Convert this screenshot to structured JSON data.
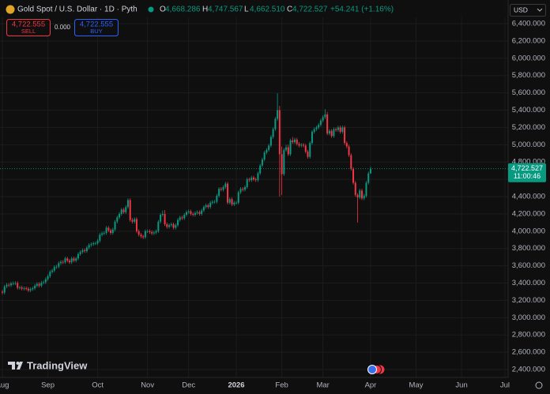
{
  "ui": {
    "symbol_title": "Gold Spot / U.S. Dollar · 1D · Pyth",
    "ohlc": [
      {
        "key": "O",
        "value": "4,668.286"
      },
      {
        "key": "H",
        "value": "4,747.567"
      },
      {
        "key": "L",
        "value": "4,662.510"
      },
      {
        "key": "C",
        "value": "4,722.527"
      }
    ],
    "change": "+54.241 (+1.16%)",
    "sell_price": "4,722.555",
    "sell_label": "SELL",
    "spread": "0.000",
    "buy_price": "4,722.555",
    "buy_label": "BUY",
    "currency": "USD",
    "last_price_label": "4,722.527",
    "countdown": "11:00:46",
    "brand": "TradingView"
  },
  "chart_data": {
    "type": "candlestick",
    "up_color": "#089981",
    "down_color": "#f23645",
    "grid": true,
    "ylim": [
      2309,
      6674
    ],
    "yticks": [
      {
        "value": 2400,
        "label": "2,400.000"
      },
      {
        "value": 2600,
        "label": "2,600.000"
      },
      {
        "value": 2800,
        "label": "2,800.000"
      },
      {
        "value": 3000,
        "label": "3,000.000"
      },
      {
        "value": 3200,
        "label": "3,200.000"
      },
      {
        "value": 3400,
        "label": "3,400.000"
      },
      {
        "value": 3600,
        "label": "3,600.000"
      },
      {
        "value": 3800,
        "label": "3,800.000"
      },
      {
        "value": 4000,
        "label": "4,000.000"
      },
      {
        "value": 4200,
        "label": "4,200.000"
      },
      {
        "value": 4400,
        "label": "4,400.000"
      },
      {
        "value": 4600,
        "label": "4,600.000"
      },
      {
        "value": 4800,
        "label": "4,800.000"
      },
      {
        "value": 5000,
        "label": "5,000.000"
      },
      {
        "value": 5200,
        "label": "5,200.000"
      },
      {
        "value": 5400,
        "label": "5,400.000"
      },
      {
        "value": 5600,
        "label": "5,600.000"
      },
      {
        "value": 5800,
        "label": "5,800.000"
      },
      {
        "value": 6000,
        "label": "6,000.000"
      },
      {
        "value": 6200,
        "label": "6,200.000"
      },
      {
        "value": 6400,
        "label": "6,400.000"
      }
    ],
    "categories": [
      "Aug",
      null,
      null,
      null,
      null,
      null,
      null,
      null,
      null,
      null,
      null,
      null,
      null,
      null,
      null,
      null,
      null,
      null,
      null,
      null,
      null,
      "Sep",
      null,
      null,
      null,
      null,
      null,
      null,
      null,
      null,
      null,
      null,
      null,
      null,
      null,
      null,
      null,
      null,
      null,
      null,
      null,
      null,
      null,
      null,
      "Oct",
      null,
      null,
      null,
      null,
      null,
      null,
      null,
      null,
      null,
      null,
      null,
      null,
      null,
      null,
      null,
      null,
      null,
      null,
      null,
      null,
      null,
      null,
      "Nov",
      null,
      null,
      null,
      null,
      null,
      null,
      null,
      null,
      null,
      null,
      null,
      null,
      null,
      null,
      null,
      null,
      null,
      null,
      "Dec",
      null,
      null,
      null,
      null,
      null,
      null,
      null,
      null,
      null,
      null,
      null,
      null,
      null,
      null,
      null,
      null,
      null,
      null,
      null,
      null,
      null,
      "2026",
      null,
      null,
      null,
      null,
      null,
      null,
      null,
      null,
      null,
      null,
      null,
      null,
      null,
      null,
      null,
      null,
      null,
      null,
      null,
      null,
      "Feb",
      null,
      null,
      null,
      null,
      null,
      null,
      null,
      null,
      null,
      null,
      null,
      null,
      null,
      null,
      null,
      null,
      null,
      null,
      "Mar",
      null,
      null,
      null,
      null,
      null,
      null,
      null,
      null,
      null,
      null,
      null,
      null,
      null,
      null,
      null,
      null,
      null,
      null,
      null,
      null,
      null,
      "Apr",
      null,
      null,
      null,
      null,
      null,
      null,
      null,
      null,
      null,
      null,
      null,
      null,
      null,
      null,
      null,
      null,
      null,
      null,
      null,
      null,
      "May",
      null,
      null,
      null,
      null,
      null,
      null,
      null,
      null,
      null,
      null,
      null,
      null,
      null,
      null,
      null,
      null,
      null,
      null,
      null,
      null,
      "Jun",
      null,
      null,
      null,
      null,
      null,
      null,
      null,
      null,
      null,
      null,
      null,
      null,
      null,
      null,
      null,
      null,
      null,
      null,
      null,
      "Jul"
    ],
    "open": [
      3300,
      3290,
      3360,
      3380,
      3375,
      3395,
      3397,
      3400,
      3345,
      3350,
      3335,
      3340,
      3335,
      3315,
      3330,
      3340,
      3370,
      3390,
      3370,
      3405,
      3410,
      3445,
      3480,
      3530,
      3545,
      3585,
      3590,
      3630,
      3645,
      3640,
      3685,
      3660,
      3640,
      3685,
      3660,
      3685,
      3735,
      3760,
      3780,
      3770,
      3810,
      3840,
      3850,
      3860,
      3860,
      3890,
      3960,
      3975,
      3980,
      4040,
      4010,
      3980,
      4020,
      4110,
      4160,
      4200,
      4250,
      4220,
      4280,
      4360,
      4130,
      4110,
      4140,
      4000,
      3960,
      3940,
      3930,
      4000,
      4000,
      3990,
      3975,
      3985,
      4000,
      4110,
      4190,
      4200,
      4080,
      4050,
      4070,
      4080,
      4040,
      4070,
      4130,
      4160,
      4150,
      4190,
      4220,
      4230,
      4200,
      4190,
      4210,
      4220,
      4200,
      4240,
      4280,
      4300,
      4280,
      4330,
      4340,
      4340,
      4410,
      4490,
      4480,
      4510,
      4550,
      4330,
      4370,
      4310,
      4330,
      4330,
      4450,
      4490,
      4480,
      4510,
      4600,
      4590,
      4620,
      4600,
      4590,
      4670,
      4760,
      4830,
      4910,
      4940,
      4990,
      5090,
      5180,
      5300,
      5400,
      4890,
      4660,
      4940,
      4970,
      4890,
      5050,
      5030,
      5060,
      5010,
      4990,
      5000,
      4990,
      4920,
      4860,
      5020,
      5150,
      5180,
      5200,
      5230,
      5280,
      5320,
      5350,
      5130,
      5160,
      5100,
      5180,
      5170,
      5200,
      5150,
      5200,
      5020,
      4980,
      4880,
      4720,
      4560,
      4420,
      4390,
      4470,
      4380,
      4410,
      4560,
      4668.286,
      null,
      null,
      null,
      null,
      null,
      null,
      null,
      null,
      null,
      null,
      null,
      null,
      null,
      null,
      null,
      null,
      null,
      null,
      null,
      null,
      null,
      null,
      null,
      null,
      null,
      null,
      null,
      null,
      null,
      null,
      null,
      null,
      null,
      null,
      null,
      null,
      null,
      null,
      null,
      null,
      null,
      null,
      null,
      null,
      null,
      null,
      null,
      null,
      null,
      null,
      null,
      null,
      null,
      null,
      null,
      null,
      null,
      null,
      null,
      null,
      null,
      null
    ],
    "high": [
      3320,
      3380,
      3400,
      3400,
      3415,
      3417,
      3420,
      3420,
      3370,
      3370,
      3360,
      3360,
      3355,
      3350,
      3360,
      3390,
      3410,
      3410,
      3425,
      3430,
      3465,
      3500,
      3550,
      3565,
      3605,
      3610,
      3650,
      3665,
      3665,
      3705,
      3705,
      3680,
      3705,
      3705,
      3705,
      3755,
      3780,
      3800,
      3800,
      3830,
      3860,
      3870,
      3880,
      3880,
      3910,
      3980,
      3995,
      4000,
      4060,
      4060,
      4030,
      4040,
      4130,
      4180,
      4220,
      4270,
      4270,
      4300,
      4380,
      4380,
      4150,
      4160,
      4160,
      4020,
      3980,
      3960,
      4020,
      4020,
      4020,
      4010,
      4005,
      4020,
      4130,
      4210,
      4240,
      4245,
      4100,
      4090,
      4100,
      4100,
      4090,
      4150,
      4180,
      4180,
      4210,
      4240,
      4250,
      4250,
      4220,
      4230,
      4240,
      4240,
      4260,
      4300,
      4320,
      4320,
      4350,
      4360,
      4360,
      4430,
      4510,
      4510,
      4530,
      4570,
      4570,
      4390,
      4390,
      4350,
      4350,
      4470,
      4510,
      4510,
      4530,
      4620,
      4620,
      4640,
      4640,
      4620,
      4690,
      4780,
      4850,
      4930,
      4960,
      5010,
      5110,
      5200,
      5320,
      5595,
      5450,
      4980,
      4960,
      5000,
      5000,
      5070,
      5090,
      5080,
      5080,
      5030,
      5020,
      5020,
      5010,
      4940,
      5040,
      5170,
      5200,
      5220,
      5250,
      5300,
      5340,
      5410,
      5380,
      5180,
      5180,
      5200,
      5200,
      5220,
      5220,
      5220,
      5220,
      5040,
      5000,
      4900,
      4740,
      4580,
      4440,
      4490,
      4490,
      4430,
      4580,
      4690,
      4747.567,
      null,
      null,
      null,
      null,
      null,
      null,
      null,
      null,
      null,
      null,
      null,
      null,
      null,
      null,
      null,
      null,
      null,
      null,
      null,
      null,
      null,
      null,
      null,
      null,
      null,
      null,
      null,
      null,
      null,
      null,
      null,
      null,
      null,
      null,
      null,
      null,
      null,
      null,
      null,
      null,
      null,
      null,
      null,
      null,
      null,
      null,
      null,
      null,
      null,
      null,
      null,
      null,
      null,
      null,
      null,
      null,
      null,
      null,
      null,
      null,
      null,
      null
    ],
    "low": [
      3270,
      3270,
      3340,
      3355,
      3355,
      3375,
      3377,
      3325,
      3325,
      3315,
      3315,
      3315,
      3295,
      3295,
      3310,
      3320,
      3350,
      3350,
      3350,
      3385,
      3390,
      3425,
      3460,
      3510,
      3525,
      3565,
      3570,
      3610,
      3620,
      3620,
      3640,
      3620,
      3620,
      3640,
      3640,
      3665,
      3715,
      3740,
      3750,
      3750,
      3790,
      3820,
      3830,
      3840,
      3840,
      3870,
      3940,
      3955,
      3960,
      3990,
      3960,
      3960,
      4000,
      4090,
      4140,
      4180,
      4200,
      4200,
      4260,
      4110,
      4090,
      4090,
      3980,
      3940,
      3920,
      3910,
      3910,
      3980,
      3970,
      3955,
      3955,
      3965,
      3980,
      4090,
      4170,
      4060,
      4030,
      4030,
      4050,
      4020,
      4020,
      4050,
      4110,
      4130,
      4130,
      4170,
      4200,
      4180,
      4170,
      4170,
      4190,
      4180,
      4180,
      4220,
      4260,
      4260,
      4260,
      4310,
      4320,
      4320,
      4390,
      4460,
      4460,
      4490,
      4310,
      4310,
      4290,
      4290,
      4310,
      4310,
      4430,
      4460,
      4460,
      4490,
      4570,
      4570,
      4580,
      4570,
      4570,
      4650,
      4740,
      4810,
      4890,
      4920,
      4970,
      5070,
      5160,
      5280,
      4400,
      4420,
      4640,
      4920,
      4870,
      4870,
      5010,
      5010,
      4990,
      4970,
      4970,
      4970,
      4900,
      4840,
      4840,
      5000,
      5130,
      5160,
      5180,
      5210,
      5260,
      5300,
      5110,
      5110,
      5080,
      5080,
      5150,
      5150,
      5130,
      5130,
      5000,
      4960,
      4860,
      4700,
      4540,
      4400,
      4100,
      4370,
      4360,
      4360,
      4390,
      4540,
      4662.51,
      null,
      null,
      null,
      null,
      null,
      null,
      null,
      null,
      null,
      null,
      null,
      null,
      null,
      null,
      null,
      null,
      null,
      null,
      null,
      null,
      null,
      null,
      null,
      null,
      null,
      null,
      null,
      null,
      null,
      null,
      null,
      null,
      null,
      null,
      null,
      null,
      null,
      null,
      null,
      null,
      null,
      null,
      null,
      null,
      null,
      null,
      null,
      null,
      null,
      null,
      null,
      null,
      null,
      null,
      null,
      null,
      null,
      null,
      null,
      null,
      null,
      null
    ],
    "close": [
      3290,
      3360,
      3380,
      3375,
      3395,
      3397,
      3400,
      3345,
      3350,
      3335,
      3340,
      3335,
      3315,
      3330,
      3340,
      3370,
      3390,
      3370,
      3405,
      3410,
      3445,
      3480,
      3530,
      3545,
      3585,
      3590,
      3630,
      3645,
      3640,
      3685,
      3660,
      3640,
      3685,
      3660,
      3685,
      3735,
      3760,
      3780,
      3770,
      3810,
      3840,
      3850,
      3860,
      3860,
      3890,
      3960,
      3975,
      3980,
      4040,
      4010,
      3980,
      4020,
      4110,
      4160,
      4200,
      4250,
      4220,
      4280,
      4360,
      4130,
      4110,
      4140,
      4000,
      3960,
      3940,
      3930,
      4000,
      4000,
      3990,
      3975,
      3985,
      4000,
      4110,
      4190,
      4200,
      4080,
      4050,
      4070,
      4080,
      4040,
      4070,
      4130,
      4160,
      4150,
      4190,
      4220,
      4230,
      4200,
      4190,
      4210,
      4220,
      4200,
      4240,
      4280,
      4300,
      4280,
      4330,
      4340,
      4340,
      4410,
      4490,
      4480,
      4510,
      4550,
      4330,
      4370,
      4310,
      4330,
      4330,
      4450,
      4490,
      4480,
      4510,
      4600,
      4590,
      4620,
      4600,
      4590,
      4670,
      4760,
      4830,
      4910,
      4940,
      4990,
      5090,
      5180,
      5300,
      5400,
      4890,
      4660,
      4940,
      4970,
      4890,
      5050,
      5030,
      5060,
      5010,
      4990,
      5000,
      4990,
      4920,
      4860,
      5020,
      5150,
      5180,
      5200,
      5230,
      5280,
      5320,
      5350,
      5130,
      5160,
      5100,
      5180,
      5170,
      5200,
      5150,
      5200,
      5020,
      4980,
      4880,
      4720,
      4560,
      4420,
      4390,
      4470,
      4380,
      4410,
      4560,
      4668,
      4722.527,
      null,
      null,
      null,
      null,
      null,
      null,
      null,
      null,
      null,
      null,
      null,
      null,
      null,
      null,
      null,
      null,
      null,
      null,
      null,
      null,
      null,
      null,
      null,
      null,
      null,
      null,
      null,
      null,
      null,
      null,
      null,
      null,
      null,
      null,
      null,
      null,
      null,
      null,
      null,
      null,
      null,
      null,
      null,
      null,
      null,
      null,
      null,
      null,
      null,
      null,
      null,
      null,
      null,
      null,
      null,
      null,
      null,
      null,
      null,
      null,
      null,
      null
    ]
  }
}
